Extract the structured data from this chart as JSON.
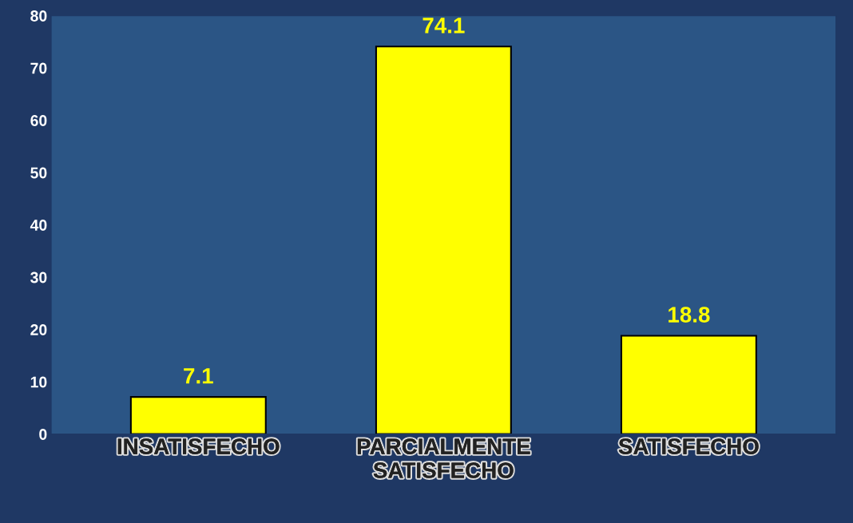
{
  "chart_data": {
    "type": "bar",
    "categories": [
      "INSATISFECHO",
      "PARCIALMENTE\nSATISFECHO",
      "SATISFECHO"
    ],
    "values": [
      7.1,
      74.1,
      18.8
    ],
    "color": "#ffff00",
    "ylim": [
      0,
      80
    ],
    "yticks": [
      0,
      10,
      20,
      30,
      40,
      50,
      60,
      70,
      80
    ],
    "data_labels": true,
    "grid": false,
    "legend": false
  }
}
